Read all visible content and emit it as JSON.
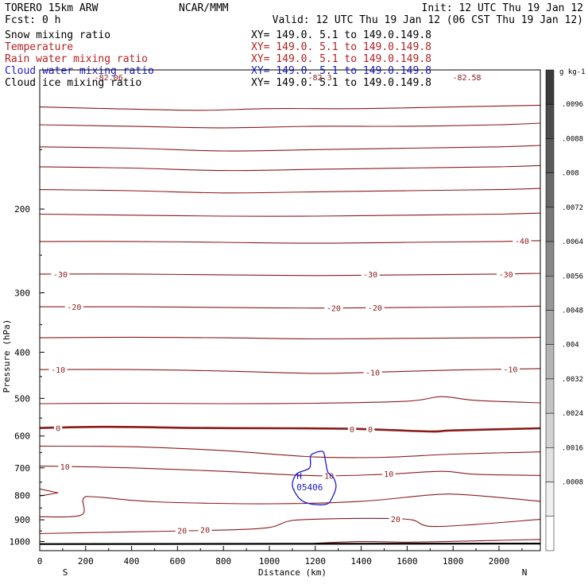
{
  "header": {
    "title": "TORERO  15km ARW",
    "center": "NCAR/MMM",
    "init": "Init: 12 UTC Thu 19 Jan 12",
    "fcst": "Fcst:    0 h",
    "valid": "Valid: 12 UTC Thu 19 Jan 12 (06 CST Thu 19 Jan 12)"
  },
  "fields": [
    {
      "name": "Snow mixing ratio",
      "xy": "XY= 149.0.  5.1 to 149.0.149.8",
      "color": "#000000"
    },
    {
      "name": "Temperature",
      "xy": "XY= 149.0.  5.1 to 149.0.149.8",
      "color": "#b22222"
    },
    {
      "name": "Rain water mixing ratio",
      "xy": "XY= 149.0.  5.1 to 149.0.149.8",
      "color": "#b22222"
    },
    {
      "name": "Cloud water mixing ratio",
      "xy": "XY= 149.0.  5.1 to 149.0.149.8",
      "color": "#1a1acd"
    },
    {
      "name": "Cloud ice mixing ratio",
      "xy": "XY= 149.0.  5.1 to 149.0.149.8",
      "color": "#000000"
    }
  ],
  "chart_data": {
    "type": "cross-section contour",
    "xlabel": "Distance (km)",
    "ylabel": "Pressure (hPa)",
    "x_ticks": [
      0,
      200,
      400,
      600,
      800,
      1000,
      1200,
      1400,
      1600,
      1800,
      2000
    ],
    "y_ticks": [
      200,
      300,
      400,
      500,
      600,
      700,
      800,
      900,
      1000
    ],
    "xlim": [
      0,
      2180
    ],
    "ylim": [
      1045,
      102
    ],
    "y_scale": "log",
    "x_end_labels": {
      "left": "S",
      "right": "N"
    },
    "colorbar": {
      "unit": "g kg-1",
      "labels": [
        ".0096",
        ".0088",
        ".008",
        ".0072",
        ".0064",
        ".0056",
        ".0048",
        ".004",
        ".0032",
        ".0024",
        ".0016",
        ".0008"
      ],
      "bins": 14
    },
    "top_labels": [
      "-82.06",
      "-82.3",
      "-82.58"
    ],
    "isotherms": [
      {
        "value": -40,
        "points": [
          [
            0,
            122
          ],
          [
            300,
            123
          ],
          [
            700,
            124
          ],
          [
            1000,
            123
          ],
          [
            1400,
            123
          ],
          [
            1800,
            122
          ],
          [
            2180,
            121
          ]
        ]
      },
      {
        "value": -40,
        "points": [
          [
            0,
            133
          ],
          [
            400,
            134
          ],
          [
            800,
            135
          ],
          [
            1200,
            134
          ],
          [
            1600,
            134
          ],
          [
            2000,
            133
          ],
          [
            2180,
            132
          ]
        ]
      },
      {
        "value": -40,
        "points": [
          [
            0,
            148
          ],
          [
            400,
            149
          ],
          [
            800,
            151
          ],
          [
            1200,
            150
          ],
          [
            1600,
            149
          ],
          [
            2000,
            148
          ],
          [
            2180,
            147
          ]
        ]
      },
      {
        "value": -40,
        "points": [
          [
            0,
            163
          ],
          [
            400,
            164
          ],
          [
            800,
            166
          ],
          [
            1200,
            165
          ],
          [
            1600,
            164
          ],
          [
            2000,
            163
          ],
          [
            2180,
            162
          ]
        ]
      },
      {
        "value": -40,
        "points": [
          [
            0,
            182
          ],
          [
            400,
            183
          ],
          [
            800,
            185
          ],
          [
            1200,
            184
          ],
          [
            1600,
            183
          ],
          [
            2000,
            182
          ],
          [
            2180,
            181
          ]
        ]
      },
      {
        "value": -40,
        "points": [
          [
            0,
            205
          ],
          [
            400,
            206
          ],
          [
            800,
            207
          ],
          [
            1200,
            207
          ],
          [
            1600,
            206
          ],
          [
            2000,
            205
          ],
          [
            2180,
            204
          ]
        ]
      },
      {
        "value": -40,
        "points": [
          [
            0,
            234
          ],
          [
            400,
            234
          ],
          [
            800,
            235
          ],
          [
            1200,
            236
          ],
          [
            1600,
            235
          ],
          [
            2000,
            234
          ],
          [
            2180,
            233
          ]
        ]
      },
      {
        "value": -30,
        "points": [
          [
            0,
            274
          ],
          [
            400,
            274
          ],
          [
            800,
            275
          ],
          [
            1200,
            276
          ],
          [
            1600,
            275
          ],
          [
            2000,
            274
          ],
          [
            2180,
            273
          ]
        ]
      },
      {
        "value": -20,
        "points": [
          [
            0,
            321
          ],
          [
            400,
            321
          ],
          [
            800,
            322
          ],
          [
            1200,
            323
          ],
          [
            1600,
            322
          ],
          [
            2000,
            321
          ],
          [
            2180,
            320
          ]
        ]
      },
      {
        "value": -20,
        "points": [
          [
            0,
            373
          ],
          [
            400,
            372
          ],
          [
            800,
            373
          ],
          [
            1200,
            375
          ],
          [
            1600,
            374
          ],
          [
            2000,
            373
          ],
          [
            2180,
            372
          ]
        ]
      },
      {
        "value": -10,
        "points": [
          [
            0,
            435
          ],
          [
            400,
            435
          ],
          [
            800,
            438
          ],
          [
            1200,
            443
          ],
          [
            1500,
            440
          ],
          [
            1800,
            436
          ],
          [
            2180,
            433
          ]
        ]
      },
      {
        "value": -10,
        "points": [
          [
            0,
            513
          ],
          [
            400,
            512
          ],
          [
            800,
            513
          ],
          [
            1200,
            512
          ],
          [
            1600,
            507
          ],
          [
            1750,
            496
          ],
          [
            1900,
            505
          ],
          [
            2180,
            511
          ]
        ]
      },
      {
        "value": 0,
        "bold": true,
        "points": [
          [
            0,
            577
          ],
          [
            300,
            574
          ],
          [
            700,
            577
          ],
          [
            1100,
            578
          ],
          [
            1400,
            580
          ],
          [
            1700,
            587
          ],
          [
            1800,
            584
          ],
          [
            2180,
            578
          ]
        ]
      },
      {
        "value": 0,
        "points": [
          [
            0,
            630
          ],
          [
            400,
            632
          ],
          [
            800,
            644
          ],
          [
            1200,
            664
          ],
          [
            1500,
            665
          ],
          [
            1800,
            655
          ],
          [
            2180,
            648
          ]
        ]
      },
      {
        "value": 10,
        "points": [
          [
            0,
            694
          ],
          [
            400,
            700
          ],
          [
            800,
            712
          ],
          [
            1200,
            727
          ],
          [
            1500,
            722
          ],
          [
            1750,
            712
          ],
          [
            1900,
            722
          ],
          [
            2180,
            726
          ]
        ]
      },
      {
        "value": 10,
        "points": [
          [
            0,
            887
          ],
          [
            180,
            880
          ],
          [
            190,
            812
          ],
          [
            250,
            806
          ],
          [
            500,
            825
          ],
          [
            1000,
            833
          ],
          [
            1400,
            823
          ],
          [
            1700,
            798
          ],
          [
            1850,
            797
          ],
          [
            2180,
            823
          ]
        ]
      },
      {
        "value": 20,
        "points": [
          [
            0,
            962
          ],
          [
            400,
            954
          ],
          [
            800,
            946
          ],
          [
            1000,
            934
          ],
          [
            1100,
            903
          ],
          [
            1300,
            895
          ],
          [
            1500,
            894
          ],
          [
            1620,
            900
          ],
          [
            1700,
            929
          ],
          [
            1900,
            920
          ],
          [
            2180,
            898
          ]
        ]
      },
      {
        "value": 20,
        "points": [
          [
            1200,
            1008
          ],
          [
            1400,
            1000
          ],
          [
            1600,
            1003
          ],
          [
            1800,
            999
          ],
          [
            2180,
            990
          ]
        ]
      }
    ],
    "contour_labels": [
      {
        "text": "-30",
        "x": 90,
        "p": 274
      },
      {
        "text": "-30",
        "x": 1440,
        "p": 274
      },
      {
        "text": "-30",
        "x": 2030,
        "p": 274
      },
      {
        "text": "-40",
        "x": 2100,
        "p": 233
      },
      {
        "text": "-20",
        "x": 150,
        "p": 321
      },
      {
        "text": "-20",
        "x": 1280,
        "p": 323
      },
      {
        "text": "-20",
        "x": 1460,
        "p": 322
      },
      {
        "text": "-10",
        "x": 80,
        "p": 435
      },
      {
        "text": "-10",
        "x": 1450,
        "p": 441
      },
      {
        "text": "-10",
        "x": 2050,
        "p": 434
      },
      {
        "text": "0",
        "x": 80,
        "p": 577
      },
      {
        "text": "0",
        "x": 1360,
        "p": 580
      },
      {
        "text": "0",
        "x": 1440,
        "p": 580
      },
      {
        "text": "10",
        "x": 110,
        "p": 695
      },
      {
        "text": "10",
        "x": 1260,
        "p": 727
      },
      {
        "text": "10",
        "x": 1520,
        "p": 720
      },
      {
        "text": "20",
        "x": 620,
        "p": 947
      },
      {
        "text": "20",
        "x": 720,
        "p": 944
      },
      {
        "text": "20",
        "x": 1550,
        "p": 896
      }
    ],
    "cloud_water_contour": {
      "points": [
        [
          1210,
          648
        ],
        [
          1180,
          660
        ],
        [
          1175,
          700
        ],
        [
          1120,
          720
        ],
        [
          1100,
          760
        ],
        [
          1120,
          800
        ],
        [
          1150,
          825
        ],
        [
          1200,
          836
        ],
        [
          1250,
          834
        ],
        [
          1270,
          815
        ],
        [
          1290,
          770
        ],
        [
          1280,
          735
        ],
        [
          1255,
          715
        ],
        [
          1245,
          680
        ],
        [
          1235,
          648
        ],
        [
          1210,
          648
        ]
      ],
      "max_marker": "H",
      "max_value": ".05406",
      "max_x": 1130,
      "max_p": 762
    },
    "ground": {
      "points": [
        [
          0,
          1012
        ],
        [
          2180,
          1010
        ]
      ]
    }
  }
}
